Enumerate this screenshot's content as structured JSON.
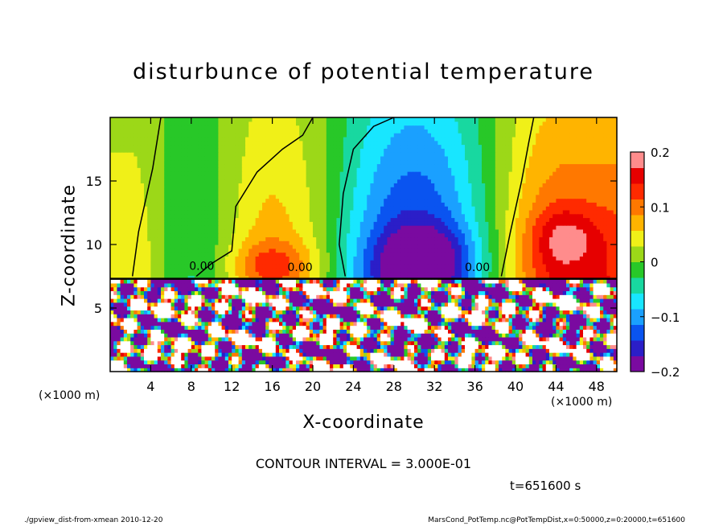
{
  "chart_data": {
    "type": "heatmap",
    "title": "disturbunce of potential temperature",
    "xlabel": "X-coordinate",
    "ylabel": "Z-coordinate",
    "x_unit_label": "(×1000 m)",
    "xlim": [
      0,
      50
    ],
    "ylim": [
      0,
      20
    ],
    "x_ticks": [
      4,
      8,
      12,
      16,
      20,
      24,
      28,
      32,
      36,
      40,
      44,
      48
    ],
    "y_ticks": [
      5,
      10,
      15
    ],
    "colorbar": {
      "range": [
        -0.2,
        0.2
      ],
      "ticks": [
        0.2,
        0.1,
        0,
        -0.1,
        -0.2
      ],
      "tick_labels": [
        "0.2",
        "0.1",
        "0",
        "−0.1",
        "−0.2"
      ]
    },
    "contour_labels": [
      "0.00",
      "0.00",
      "0.00"
    ],
    "contour_interval": "CONTOUR INTERVAL = 3.000E-01",
    "time": "t=651600 s",
    "field_summary": {
      "upper_layer": [
        {
          "x": 2,
          "value": 0.05
        },
        {
          "x": 8,
          "value": -0.03
        },
        {
          "x": 16,
          "value": 0.08
        },
        {
          "x": 30,
          "value": -0.18
        },
        {
          "x": 45,
          "value": 0.14
        }
      ],
      "interface_height": 7.3
    }
  },
  "footer": {
    "left": "./gpview_dist-from-xmean  2010-12-20",
    "right": "MarsCond_PotTemp.nc@PotTempDist,x=0:50000,z=0:20000,t=651600"
  },
  "colors": {
    "scale": [
      "#7a0aa0",
      "#2b1ec8",
      "#0a54f0",
      "#1aa0ff",
      "#18e6ff",
      "#18d8a0",
      "#28c828",
      "#9cd818",
      "#f0f018",
      "#ffb400",
      "#ff7800",
      "#ff2a00",
      "#e60000",
      "#ff8c8c"
    ]
  }
}
